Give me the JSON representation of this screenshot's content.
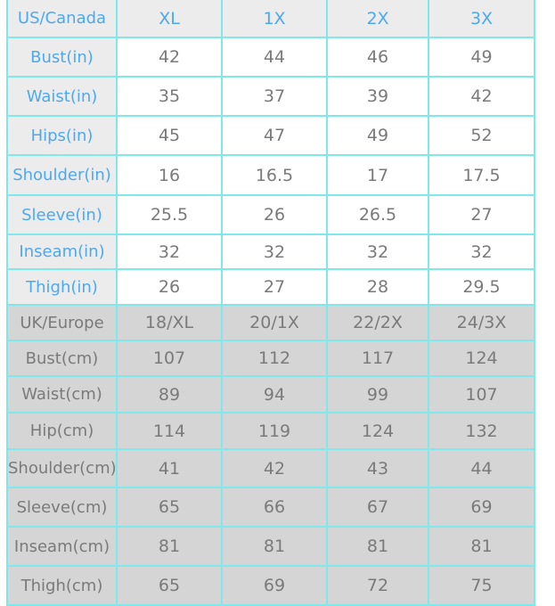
{
  "us_section": {
    "header": [
      "US/Canada",
      "XL",
      "1X",
      "2X",
      "3X"
    ],
    "rows": [
      {
        "label": "Bust(in)",
        "values": [
          "42",
          "44",
          "46",
          "49"
        ]
      },
      {
        "label": "Waist(in)",
        "values": [
          "35",
          "37",
          "39",
          "42"
        ]
      },
      {
        "label": "Hips(in)",
        "values": [
          "45",
          "47",
          "49",
          "52"
        ]
      },
      {
        "label": "Shoulder(in)",
        "values": [
          "16",
          "16.5",
          "17",
          "17.5"
        ]
      },
      {
        "label": "Sleeve(in)",
        "values": [
          "25.5",
          "26",
          "26.5",
          "27"
        ]
      },
      {
        "label": "Inseam(in)",
        "values": [
          "32",
          "32",
          "32",
          "32"
        ]
      },
      {
        "label": "Thigh(in)",
        "values": [
          "26",
          "27",
          "28",
          "29.5"
        ]
      }
    ]
  },
  "uk_section": {
    "header": [
      "UK/Europe",
      "18/XL",
      "20/1X",
      "22/2X",
      "24/3X"
    ],
    "rows": [
      {
        "label": "Bust(cm)",
        "values": [
          "107",
          "112",
          "117",
          "124"
        ]
      },
      {
        "label": "Waist(cm)",
        "values": [
          "89",
          "94",
          "99",
          "107"
        ]
      },
      {
        "label": "Hip(cm)",
        "values": [
          "114",
          "119",
          "124",
          "132"
        ]
      },
      {
        "label": "Shoulder(cm)",
        "values": [
          "41",
          "42",
          "43",
          "44"
        ]
      },
      {
        "label": "Sleeve(cm)",
        "values": [
          "65",
          "66",
          "67",
          "69"
        ]
      },
      {
        "label": "Inseam(cm)",
        "values": [
          "81",
          "81",
          "81",
          "81"
        ]
      },
      {
        "label": "Thigh(cm)",
        "values": [
          "65",
          "69",
          "72",
          "75"
        ]
      }
    ]
  },
  "colors": {
    "border": "#7ee8ea",
    "us_text": "#4da9ee",
    "value_text": "#7a7a7a",
    "label_bg": "#ececec",
    "uk_bg": "#d5d5d5"
  }
}
